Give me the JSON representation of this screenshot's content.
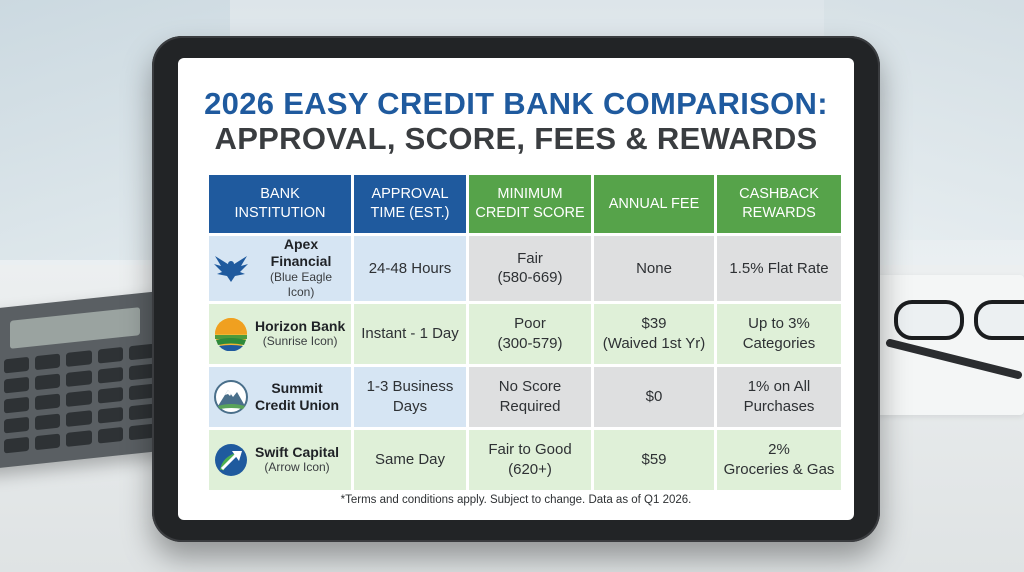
{
  "title": {
    "line1": "2026 EASY CREDIT BANK COMPARISON:",
    "line2": "APPROVAL, SCORE, FEES & REWARDS"
  },
  "columns": [
    {
      "line1": "BANK",
      "line2": "INSTITUTION"
    },
    {
      "line1": "APPROVAL",
      "line2": "TIME (EST.)"
    },
    {
      "line1": "MINIMUM",
      "line2": "CREDIT SCORE"
    },
    {
      "line1": "ANNUAL FEE",
      "line2": ""
    },
    {
      "line1": "CASHBACK",
      "line2": "REWARDS"
    }
  ],
  "rows": [
    {
      "name_line1": "Apex Financial",
      "name_line2": "",
      "sub": "(Blue Eagle Icon)",
      "icon": "eagle-icon",
      "approval_line1": "24-48 Hours",
      "approval_line2": "",
      "score_line1": "Fair",
      "score_line2": "(580-669)",
      "fee_line1": "None",
      "fee_line2": "",
      "reward_line1": "1.5% Flat Rate",
      "reward_line2": ""
    },
    {
      "name_line1": "Horizon Bank",
      "name_line2": "",
      "sub": "(Sunrise Icon)",
      "icon": "sunrise-icon",
      "approval_line1": "Instant - 1 Day",
      "approval_line2": "",
      "score_line1": "Poor",
      "score_line2": "(300-579)",
      "fee_line1": "$39",
      "fee_line2": "(Waived 1st Yr)",
      "reward_line1": "Up to 3%",
      "reward_line2": "Categories"
    },
    {
      "name_line1": "Summit",
      "name_line2": "Credit Union",
      "sub": "",
      "icon": "mountain-icon",
      "approval_line1": "1-3 Business",
      "approval_line2": "Days",
      "score_line1": "No Score",
      "score_line2": "Required",
      "fee_line1": "$0",
      "fee_line2": "",
      "reward_line1": "1% on All",
      "reward_line2": "Purchases"
    },
    {
      "name_line1": "Swift Capital",
      "name_line2": "",
      "sub": "(Arrow Icon)",
      "icon": "arrow-icon",
      "approval_line1": "Same Day",
      "approval_line2": "",
      "score_line1": "Fair to Good",
      "score_line2": "(620+)",
      "fee_line1": "$59",
      "fee_line2": "",
      "reward_line1": "2%",
      "reward_line2": "Groceries & Gas"
    }
  ],
  "footnote": "*Terms and conditions apply. Subject to change. Data as of Q1 2026.",
  "colors": {
    "header_blue": "#1f5a9e",
    "header_green": "#56a34a",
    "cell_blue": "#d6e5f3",
    "cell_green": "#dff0d8",
    "cell_gray": "#dedfe0"
  }
}
